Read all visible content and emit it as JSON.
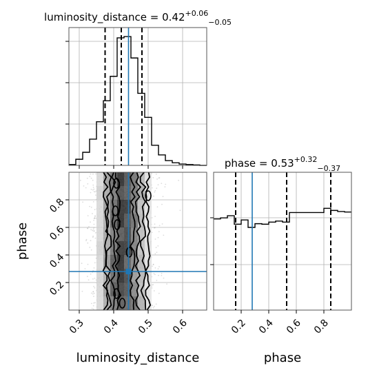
{
  "chart_data": {
    "type": "corner",
    "parameters": [
      "luminosity_distance",
      "phase"
    ],
    "colors": {
      "truth": "#1f77b4",
      "hist": "#000000",
      "grid": "#b0b0b0",
      "scatter": "#9a9a9a"
    },
    "grid": true,
    "luminosity_distance": {
      "xlabel": "luminosity_distance",
      "title_name": "luminosity_distance",
      "title_median": "0.42",
      "title_plus": "+0.06",
      "title_minus": "−0.05",
      "xlim": [
        0.27,
        0.67
      ],
      "xticks": [
        0.3,
        0.4,
        0.5,
        0.6
      ],
      "xtick_labels": [
        "0.3",
        "0.4",
        "0.5",
        "0.6"
      ],
      "bin_edges": [
        0.27,
        0.29,
        0.31,
        0.33,
        0.35,
        0.37,
        0.39,
        0.41,
        0.43,
        0.45,
        0.47,
        0.49,
        0.51,
        0.53,
        0.55,
        0.57,
        0.59,
        0.61,
        0.63,
        0.65,
        0.67
      ],
      "hist_counts": [
        2,
        14,
        30,
        60,
        100,
        148,
        204,
        292,
        295,
        246,
        165,
        110,
        46,
        24,
        11,
        6,
        3,
        2,
        1,
        0
      ],
      "quantiles": [
        0.375,
        0.422,
        0.482
      ],
      "truth": 0.443
    },
    "phase": {
      "xlabel": "phase",
      "ylabel": "phase",
      "title_name": "phase",
      "title_median": "0.53",
      "title_plus": "+0.32",
      "title_minus": "−0.37",
      "xlim": [
        0.0,
        1.0
      ],
      "ylim": [
        0.0,
        1.0
      ],
      "xticks": [
        0.2,
        0.4,
        0.6,
        0.8
      ],
      "xtick_labels": [
        "0.2",
        "0.4",
        "0.6",
        "0.8"
      ],
      "yticks": [
        0.2,
        0.4,
        0.6,
        0.8
      ],
      "ytick_labels": [
        "0.2",
        "0.4",
        "0.6",
        "0.8"
      ],
      "bin_edges": [
        0.0,
        0.05,
        0.1,
        0.15,
        0.2,
        0.25,
        0.3,
        0.35,
        0.4,
        0.45,
        0.5,
        0.55,
        0.6,
        0.65,
        0.7,
        0.75,
        0.8,
        0.85,
        0.9,
        0.95,
        1.0
      ],
      "hist_counts": [
        172,
        174,
        178,
        162,
        170,
        156,
        163,
        162,
        166,
        168,
        166,
        184,
        184,
        184,
        184,
        184,
        192,
        188,
        186,
        185
      ],
      "quantiles": [
        0.16,
        0.53,
        0.85
      ],
      "truth": 0.28
    },
    "joint": {
      "truth_x": 0.443,
      "truth_y": 0.28,
      "column_density": [
        0,
        0,
        0.03,
        0.08,
        0.2,
        0.42,
        0.72,
        0.97,
        0.92,
        0.6,
        0.35,
        0.14,
        0.05,
        0.02,
        0,
        0,
        0,
        0,
        0,
        0
      ],
      "contour_levels": [
        {
          "x_low": 0.375,
          "x_high": 0.5
        },
        {
          "x_low": 0.385,
          "x_high": 0.485
        },
        {
          "x_low": 0.4,
          "x_high": 0.47
        },
        {
          "x_low": 0.413,
          "x_high": 0.455
        }
      ]
    }
  }
}
